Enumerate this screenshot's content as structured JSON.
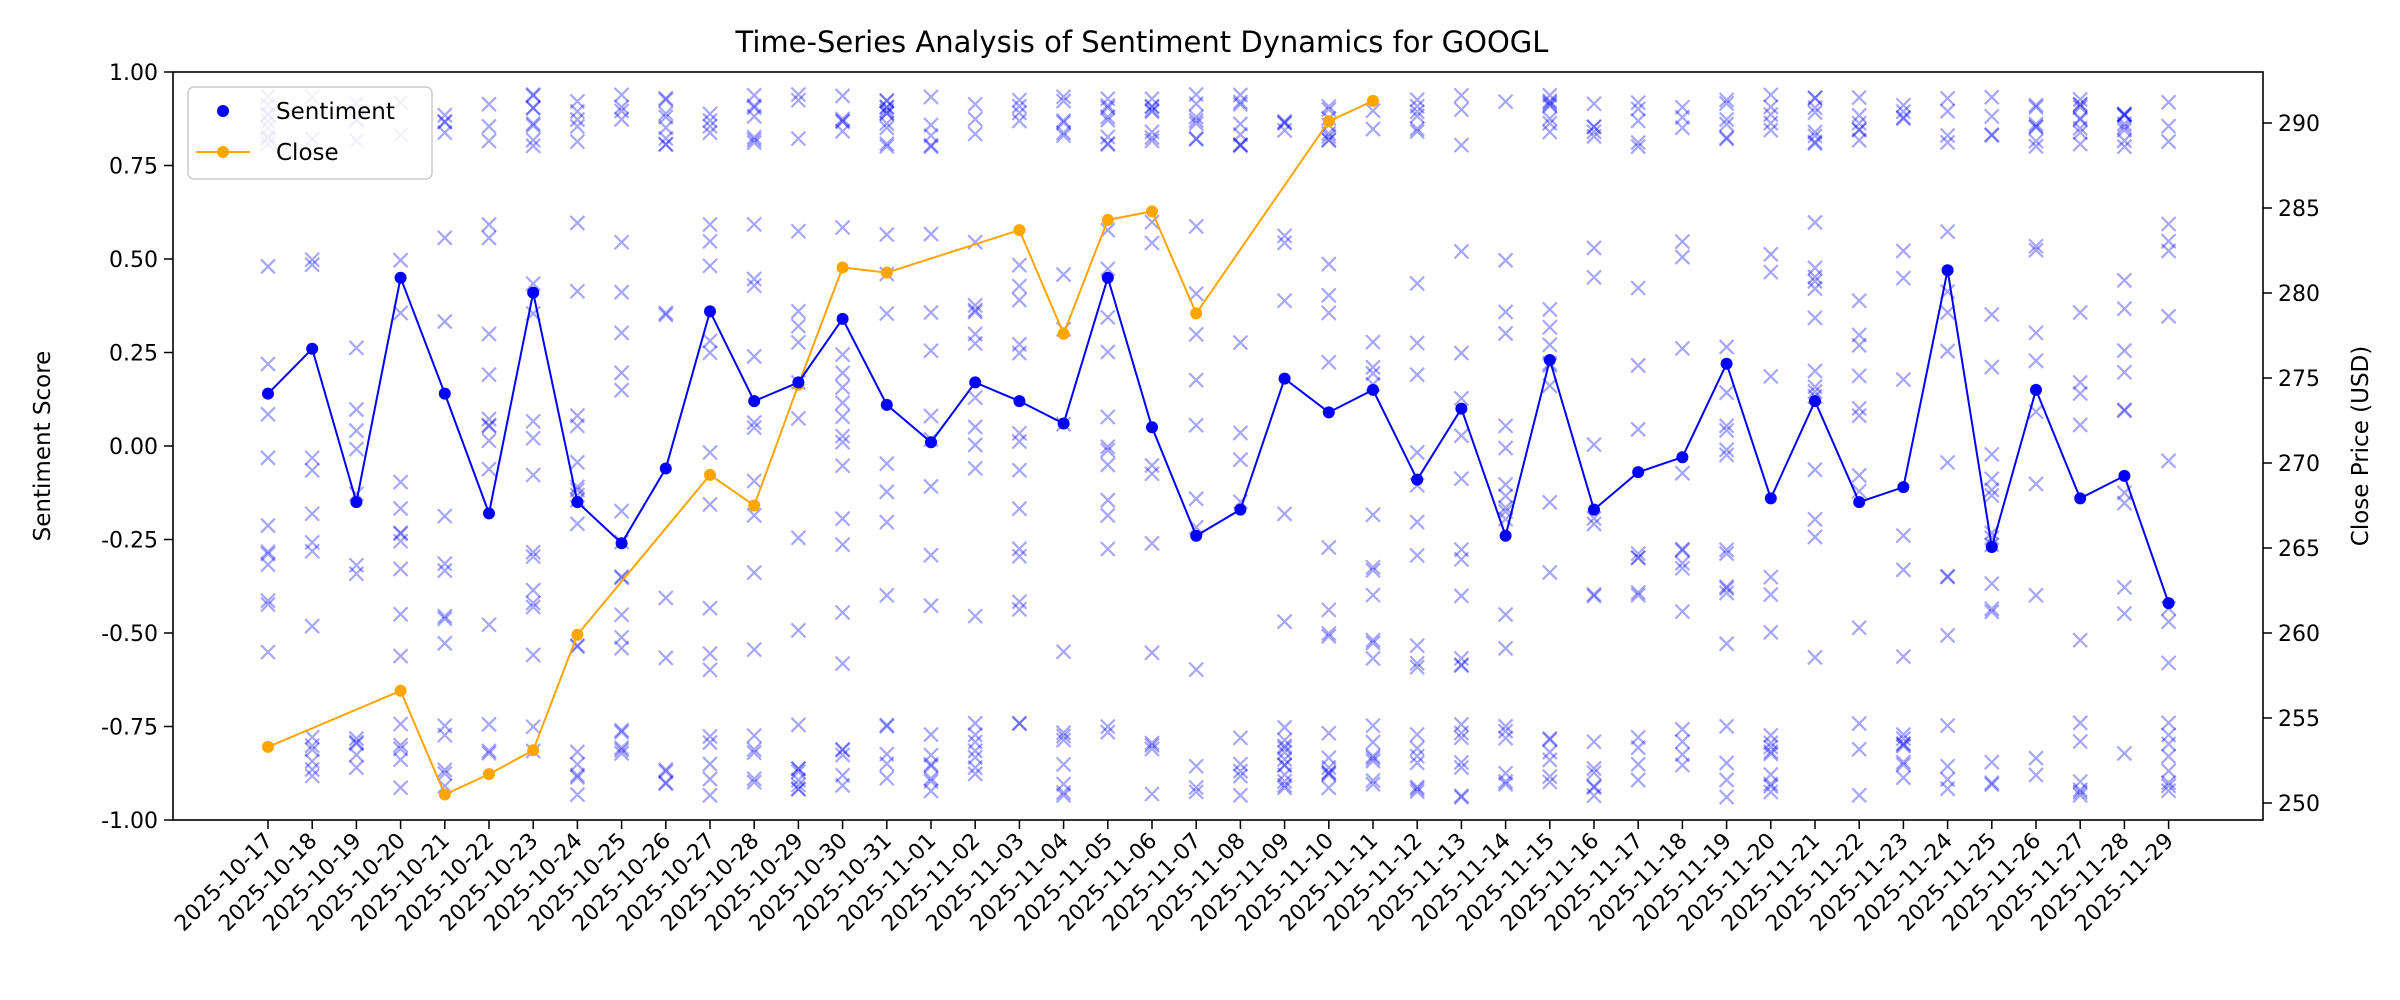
{
  "chart_data": {
    "type": "line",
    "title": "Time-Series Analysis of Sentiment Dynamics for GOOGL",
    "ylabel": "Sentiment Score",
    "y2label": "Close Price (USD)",
    "ylim": [
      -1.0,
      1.0
    ],
    "y2lim": [
      249,
      293
    ],
    "yticks": [
      "-1.00",
      "-0.75",
      "-0.50",
      "-0.25",
      "0.00",
      "0.25",
      "0.50",
      "0.75",
      "1.00"
    ],
    "y2ticks": [
      "250",
      "255",
      "260",
      "265",
      "270",
      "275",
      "280",
      "285",
      "290"
    ],
    "grid": false,
    "legend_position": "top-left",
    "colors": {
      "sentiment": "#0000ff",
      "close": "#ffa500",
      "scatter": "#0000ff"
    },
    "x": [
      "2025-10-17",
      "2025-10-18",
      "2025-10-19",
      "2025-10-20",
      "2025-10-21",
      "2025-10-22",
      "2025-10-23",
      "2025-10-24",
      "2025-10-25",
      "2025-10-26",
      "2025-10-27",
      "2025-10-28",
      "2025-10-29",
      "2025-10-30",
      "2025-10-31",
      "2025-11-01",
      "2025-11-02",
      "2025-11-03",
      "2025-11-04",
      "2025-11-05",
      "2025-11-06",
      "2025-11-07",
      "2025-11-08",
      "2025-11-09",
      "2025-11-10",
      "2025-11-11",
      "2025-11-12",
      "2025-11-13",
      "2025-11-14",
      "2025-11-15",
      "2025-11-16",
      "2025-11-17",
      "2025-11-18",
      "2025-11-19",
      "2025-11-20",
      "2025-11-21",
      "2025-11-22",
      "2025-11-23",
      "2025-11-24",
      "2025-11-25",
      "2025-11-26",
      "2025-11-27",
      "2025-11-28",
      "2025-11-29"
    ],
    "series": [
      {
        "name": "Sentiment",
        "axis": "left",
        "values": [
          0.14,
          0.26,
          -0.15,
          0.45,
          0.14,
          -0.18,
          0.41,
          -0.15,
          -0.26,
          -0.06,
          0.36,
          0.12,
          0.17,
          0.34,
          0.11,
          0.01,
          0.17,
          0.12,
          0.06,
          0.45,
          0.05,
          -0.24,
          -0.17,
          0.18,
          0.09,
          0.15,
          -0.09,
          0.1,
          -0.24,
          0.23,
          -0.17,
          -0.07,
          -0.03,
          0.22,
          -0.14,
          0.12,
          -0.15,
          -0.11,
          0.47,
          -0.27,
          0.15,
          -0.14,
          -0.08,
          -0.42
        ]
      },
      {
        "name": "Close",
        "axis": "right",
        "points": [
          [
            "2025-10-17",
            253.3
          ],
          [
            "2025-10-20",
            256.6
          ],
          [
            "2025-10-21",
            250.5
          ],
          [
            "2025-10-22",
            251.7
          ],
          [
            "2025-10-23",
            253.1
          ],
          [
            "2025-10-24",
            259.9
          ],
          [
            "2025-10-27",
            269.3
          ],
          [
            "2025-10-28",
            267.5
          ],
          [
            "2025-10-29",
            274.6
          ],
          [
            "2025-10-30",
            281.5
          ],
          [
            "2025-10-31",
            281.2
          ],
          [
            "2025-11-03",
            283.7
          ],
          [
            "2025-11-04",
            277.6
          ],
          [
            "2025-11-05",
            284.3
          ],
          [
            "2025-11-06",
            284.8
          ],
          [
            "2025-11-07",
            278.8
          ],
          [
            "2025-11-10",
            290.1
          ],
          [
            "2025-11-11",
            291.3
          ]
        ]
      }
    ],
    "scatter": {
      "marker": "x",
      "opacity": 0.35,
      "seed": 20251017,
      "points_per_day": 20
    }
  }
}
